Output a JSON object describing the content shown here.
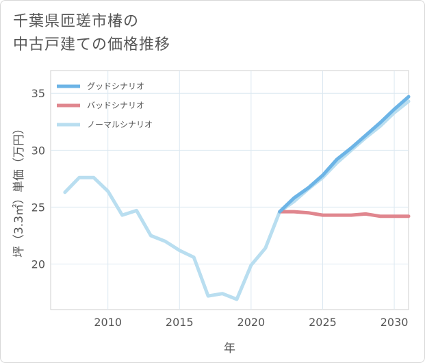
{
  "title_lines": [
    "千葉県匝瑳市椿の",
    "中古戸建ての価格推移"
  ],
  "chart_data": {
    "type": "line",
    "title": "千葉県匝瑳市椿の中古戸建ての価格推移",
    "xlabel": "年",
    "ylabel": "坪（3.3㎡）単価（万円）",
    "xlim": [
      2006,
      2031
    ],
    "ylim": [
      16,
      37
    ],
    "x_ticks": [
      2010,
      2015,
      2020,
      2025,
      2030
    ],
    "y_ticks": [
      20,
      25,
      30,
      35
    ],
    "grid": true,
    "legend_position": "top-left",
    "series": [
      {
        "name": "グッドシナリオ",
        "color": "#6cb4e6",
        "x": [
          2022,
          2023,
          2024,
          2025,
          2026,
          2027,
          2028,
          2029,
          2030,
          2031
        ],
        "y": [
          24.6,
          25.8,
          26.7,
          27.8,
          29.2,
          30.2,
          31.3,
          32.4,
          33.6,
          34.7
        ]
      },
      {
        "name": "バッドシナリオ",
        "color": "#e0868e",
        "x": [
          2022,
          2023,
          2024,
          2025,
          2026,
          2027,
          2028,
          2029,
          2030,
          2031
        ],
        "y": [
          24.6,
          24.6,
          24.5,
          24.3,
          24.3,
          24.3,
          24.4,
          24.2,
          24.2,
          24.2
        ]
      },
      {
        "name": "ノーマルシナリオ",
        "color": "#b9def0",
        "x": [
          2007,
          2008,
          2009,
          2010,
          2011,
          2012,
          2013,
          2014,
          2015,
          2016,
          2017,
          2018,
          2019,
          2020,
          2021,
          2022,
          2023,
          2024,
          2025,
          2026,
          2027,
          2028,
          2029,
          2030,
          2031
        ],
        "y": [
          26.3,
          27.6,
          27.6,
          26.4,
          24.3,
          24.7,
          22.5,
          22.0,
          21.2,
          20.6,
          17.2,
          17.4,
          16.9,
          19.9,
          21.4,
          24.6,
          25.5,
          26.6,
          27.6,
          28.9,
          30.0,
          31.1,
          32.1,
          33.3,
          34.3
        ]
      }
    ]
  }
}
